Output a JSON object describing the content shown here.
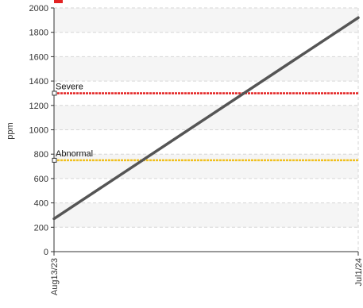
{
  "chart_data": {
    "type": "line",
    "title": "",
    "xlabel": "",
    "ylabel": "ppm",
    "ylim": [
      0,
      2000
    ],
    "yticks": [
      0,
      200,
      400,
      600,
      800,
      1000,
      1200,
      1400,
      1600,
      1800,
      2000
    ],
    "x": [
      "Aug13/23",
      "Jul1/24"
    ],
    "xticks": [
      "Aug13/23",
      "Jul1/24"
    ],
    "series": [
      {
        "x": [
          "Aug13/23",
          "Jul1/24"
        ],
        "values": [
          270,
          1920
        ],
        "color": "#555555"
      }
    ],
    "thresholds": [
      {
        "label": "Severe",
        "value": 1300,
        "color": "#e32222"
      },
      {
        "label": "Abnormal",
        "value": 750,
        "color": "#f0c020"
      }
    ],
    "grid": true,
    "alternating_bands": true,
    "legend_marker_color": "#e32222"
  }
}
